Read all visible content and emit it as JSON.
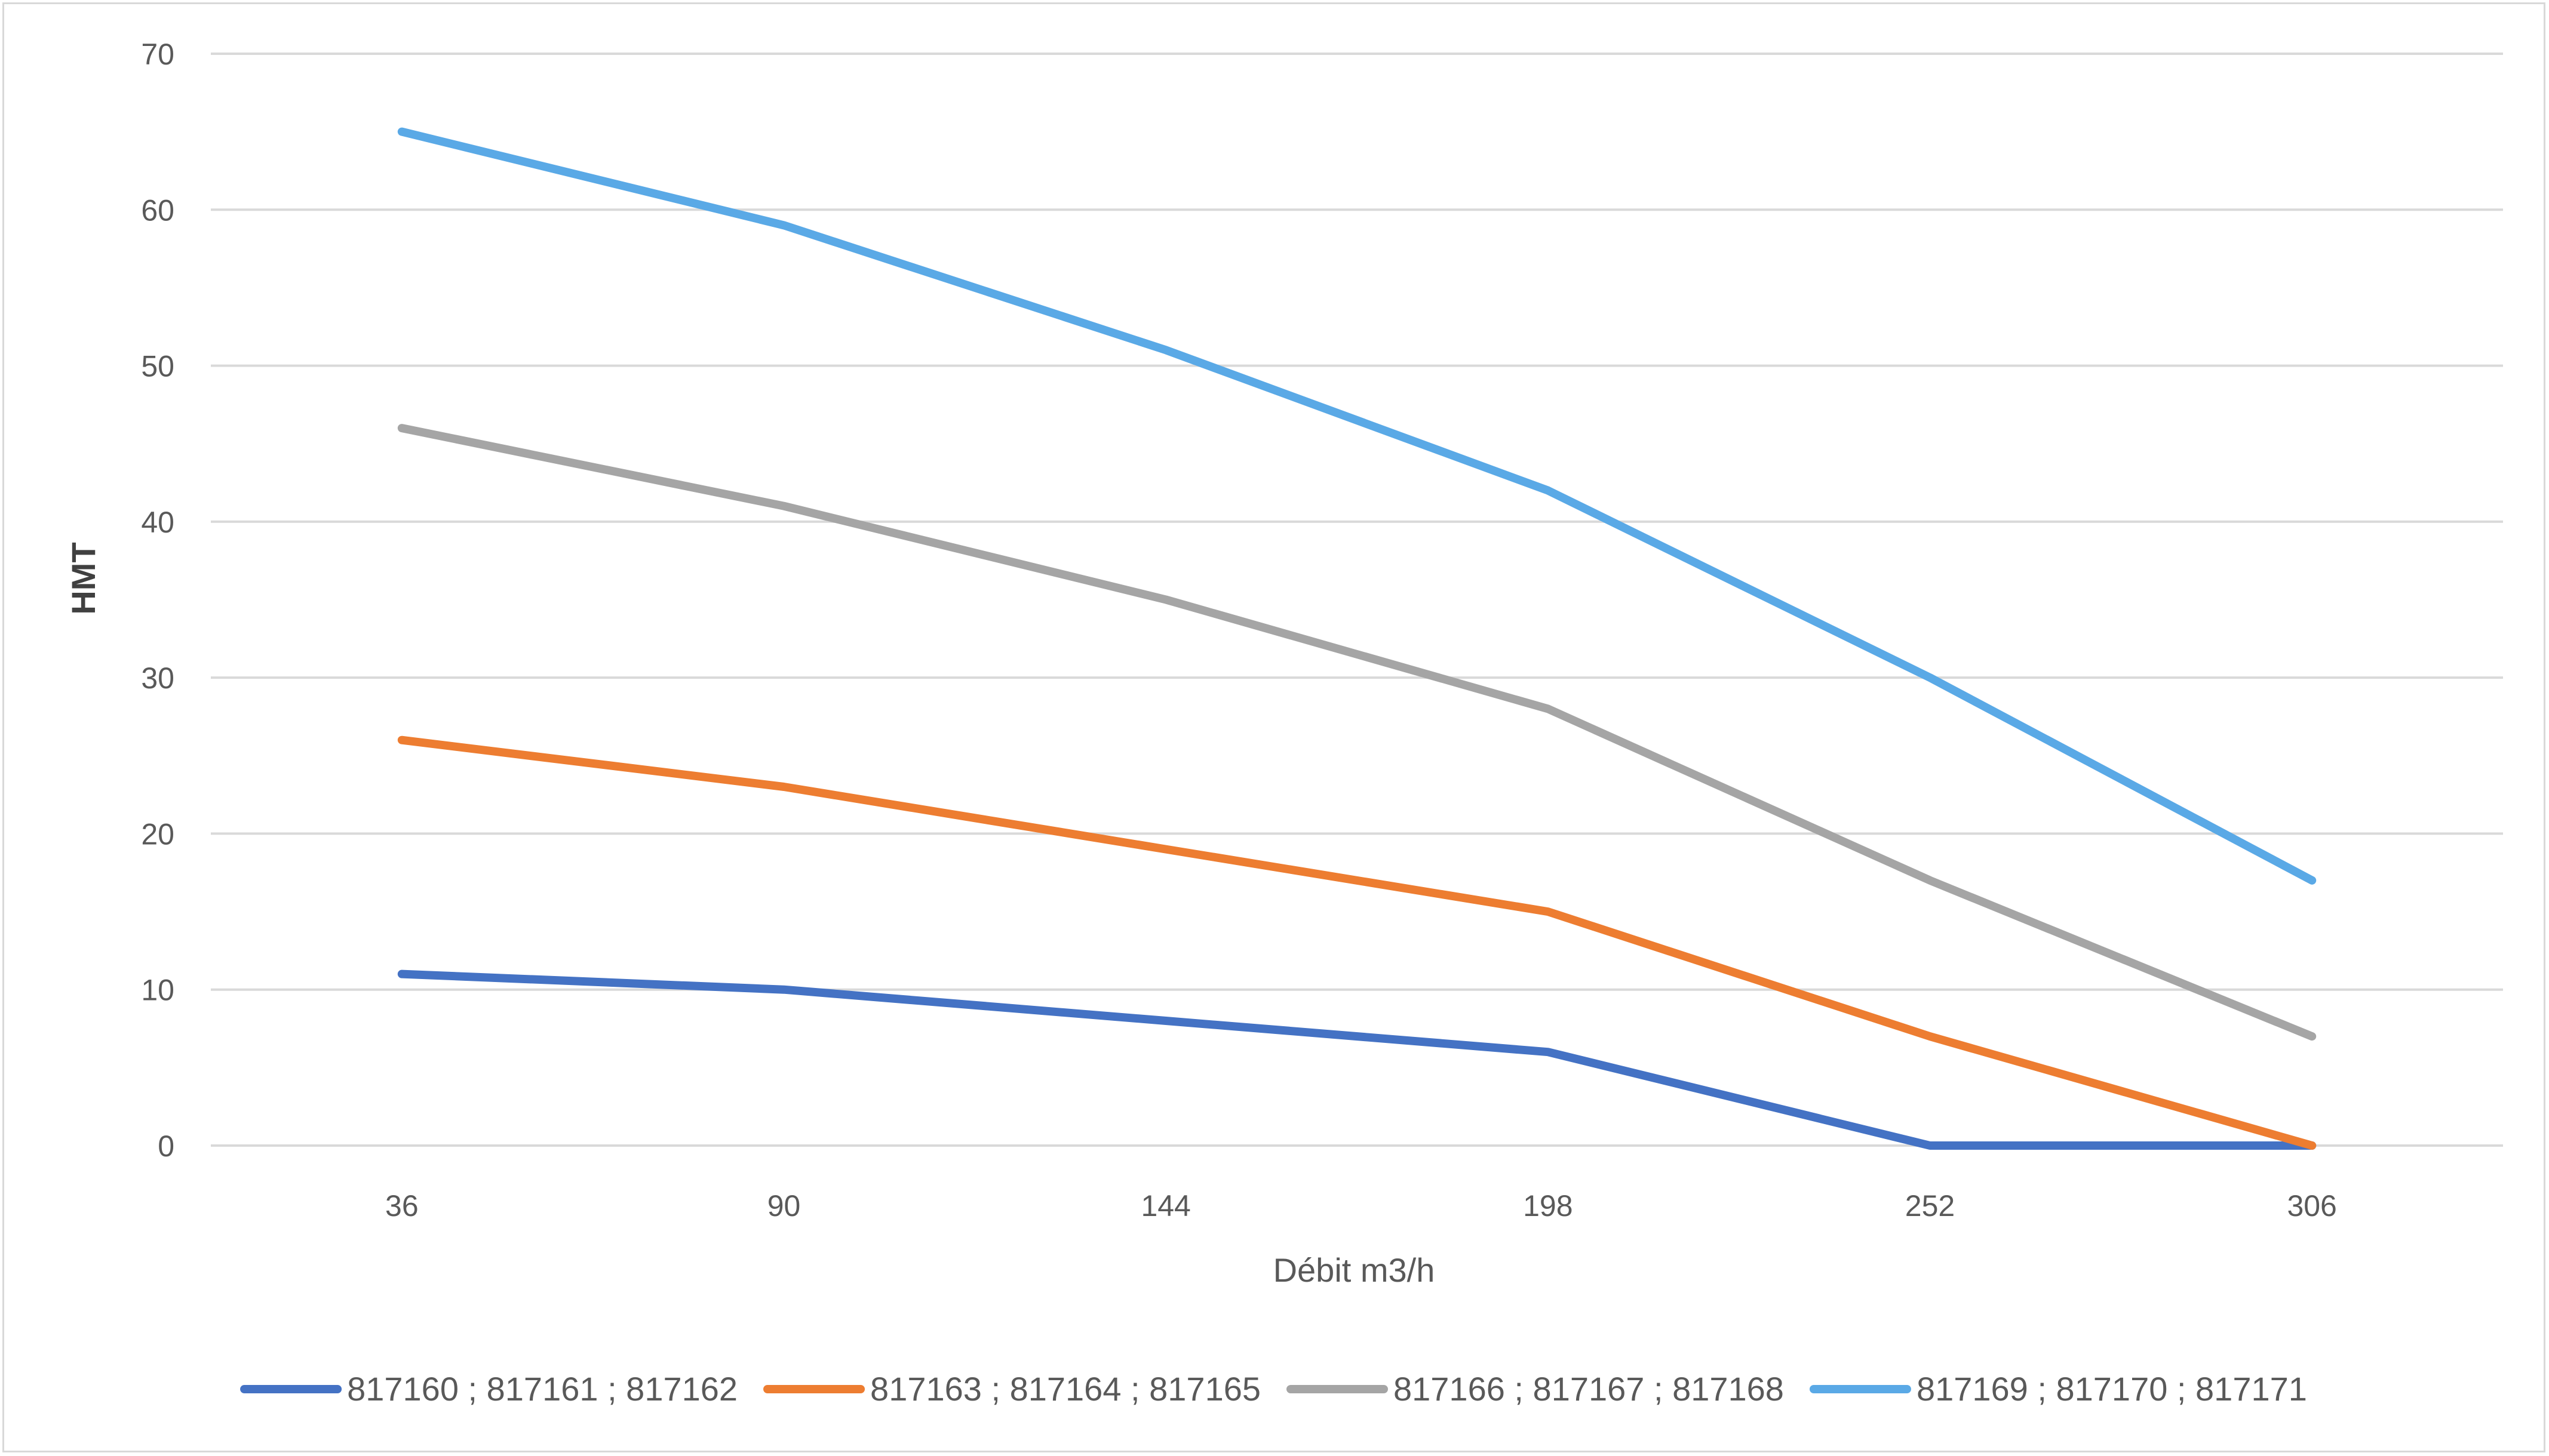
{
  "chart_data": {
    "type": "line",
    "title": "",
    "xlabel": "Débit m3/h",
    "ylabel": "HMT",
    "categories": [
      "36",
      "90",
      "144",
      "198",
      "252",
      "306"
    ],
    "yticks": [
      0,
      10,
      20,
      30,
      40,
      50,
      60,
      70
    ],
    "ylim": [
      0,
      70
    ],
    "grid": true,
    "legend_position": "bottom",
    "series": [
      {
        "name": "817160 ; 817161 ; 817162",
        "color": "#4472c4",
        "values": [
          11,
          10,
          8,
          6,
          0,
          0
        ]
      },
      {
        "name": "817163 ; 817164 ; 817165",
        "color": "#ed7d31",
        "values": [
          26,
          23,
          19,
          15,
          7,
          0
        ]
      },
      {
        "name": "817166 ; 817167 ; 817168",
        "color": "#a5a5a5",
        "values": [
          46,
          41,
          35,
          28,
          17,
          7
        ]
      },
      {
        "name": "817169 ; 817170 ; 817171",
        "color": "#5aa9e6",
        "values": [
          65,
          59,
          51,
          42,
          30,
          17
        ]
      }
    ]
  }
}
